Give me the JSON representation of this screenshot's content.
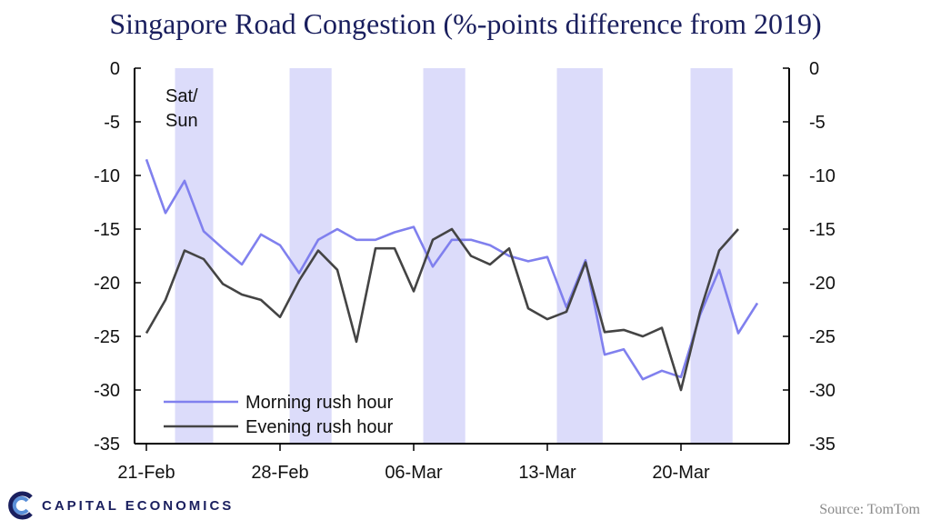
{
  "chart_data": {
    "type": "line",
    "title": "Singapore Road Congestion (%-points difference from 2019)",
    "x_ticks": [
      "21-Feb",
      "28-Feb",
      "06-Mar",
      "13-Mar",
      "20-Mar"
    ],
    "x_tick_days": [
      0,
      7,
      14,
      21,
      28
    ],
    "ylim": [
      -35,
      0
    ],
    "y_ticks": [
      0,
      -5,
      -10,
      -15,
      -20,
      -25,
      -30,
      -35
    ],
    "weekend_annotation": "Sat/\nSun",
    "weekend_bands": [
      [
        1.5,
        3.5
      ],
      [
        7.5,
        9.7
      ],
      [
        14.5,
        16.7
      ],
      [
        21.5,
        23.9
      ],
      [
        28.5,
        30.7
      ]
    ],
    "series": [
      {
        "name": "Morning rush hour",
        "color": "#8080ee",
        "days": [
          0,
          1,
          2,
          3,
          4,
          5,
          6,
          7,
          8,
          9,
          10,
          11,
          12,
          13,
          14,
          15,
          16,
          17,
          18,
          19,
          20,
          21,
          22,
          23,
          24,
          25,
          26,
          27,
          28,
          29,
          30,
          31,
          32
        ],
        "values": [
          -8.5,
          -13.5,
          -10.5,
          -15.2,
          -16.8,
          -18.3,
          -15.5,
          -16.5,
          -19.1,
          -16.0,
          -15.0,
          -16.0,
          -16.0,
          -15.3,
          -14.8,
          -18.5,
          -16.0,
          -16.0,
          -16.5,
          -17.5,
          -18.0,
          -17.6,
          -22.3,
          -17.9,
          -26.7,
          -26.2,
          -29.0,
          -28.2,
          -28.8,
          -23.0,
          -18.8,
          -24.7,
          -21.9
        ]
      },
      {
        "name": "Evening rush hour",
        "color": "#444444",
        "days": [
          0,
          1,
          2,
          3,
          4,
          5,
          6,
          7,
          8,
          9,
          10,
          11,
          12,
          13,
          14,
          15,
          16,
          17,
          18,
          19,
          20,
          21,
          22,
          23,
          24,
          25,
          26,
          27,
          28,
          29,
          30,
          31
        ],
        "values": [
          -24.7,
          -21.6,
          -17.0,
          -17.8,
          -20.1,
          -21.1,
          -21.6,
          -23.2,
          -19.8,
          -17.0,
          -18.8,
          -25.5,
          -16.8,
          -16.8,
          -20.8,
          -16.0,
          -15.0,
          -17.5,
          -18.3,
          -16.8,
          -22.4,
          -23.4,
          -22.7,
          -18.1,
          -24.6,
          -24.4,
          -25.0,
          -24.2,
          -30.0,
          -22.7,
          -17.0,
          -15.0
        ]
      }
    ],
    "legend": [
      "Morning rush hour",
      "Evening rush hour"
    ]
  },
  "branding": {
    "company": "CAPITAL ECONOMICS"
  },
  "source": "Source: TomTom"
}
